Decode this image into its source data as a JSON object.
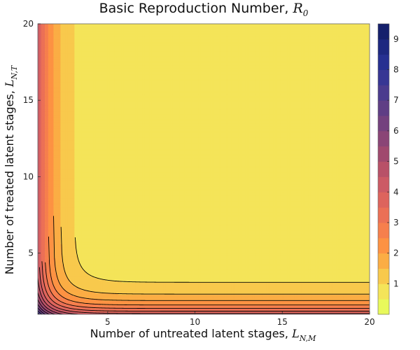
{
  "chart_data": {
    "type": "heatmap",
    "title": "Basic Reproduction Number, ",
    "title_math": "R",
    "title_math_sub": "0",
    "xlabel": "Number of untreated latent stages, ",
    "xlabel_math": "L",
    "xlabel_math_sub": "N,M",
    "ylabel": "Number of treated latent stages, ",
    "ylabel_math": "L",
    "ylabel_math_sub": "N,T",
    "xlim": [
      1,
      20
    ],
    "ylim": [
      1,
      20
    ],
    "xticks": [
      5,
      10,
      15,
      20
    ],
    "yticks": [
      5,
      10,
      15,
      20
    ],
    "colorbar": {
      "min": 0,
      "max": 9.5,
      "ticks": [
        1,
        2,
        3,
        4,
        5,
        6,
        7,
        8,
        9
      ],
      "levels": [
        0,
        0.5,
        1,
        1.5,
        2,
        2.5,
        3,
        3.5,
        4,
        4.5,
        5,
        5.5,
        6,
        6.5,
        7,
        7.5,
        8,
        8.5,
        9,
        9.5
      ],
      "colors": [
        "#e8f95b",
        "#f4e459",
        "#f8c94c",
        "#fbad44",
        "#fd9243",
        "#f67f4d",
        "#eb7056",
        "#dd645d",
        "#cc5a65",
        "#b85168",
        "#a0496e",
        "#8a4576",
        "#74417e",
        "#5f3e85",
        "#4b3b8e",
        "#373694",
        "#263091",
        "#1d2880",
        "#15206c",
        "#0d1648"
      ]
    },
    "function": "R0 = 0.6*(1 + 6*0.35^(x-1) + 6*0.35^(y-1))",
    "grid": false
  }
}
